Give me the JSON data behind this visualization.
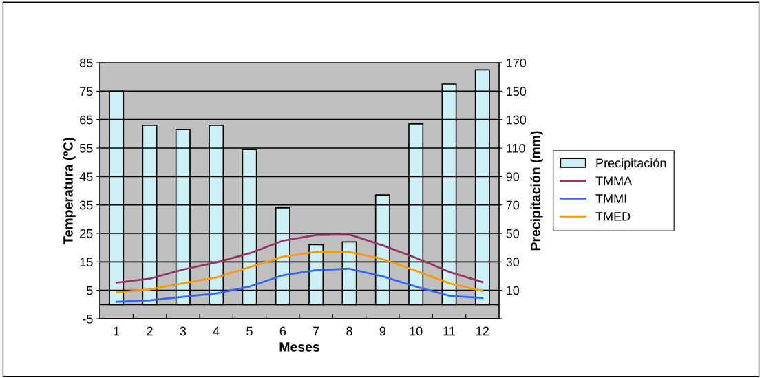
{
  "chart_data": {
    "type": "bar",
    "xlabel": "Meses",
    "ylabel": "Temperatura (ºC)",
    "y2label": "Precipitación (mm)",
    "categories": [
      "1",
      "2",
      "3",
      "4",
      "5",
      "6",
      "7",
      "8",
      "9",
      "10",
      "11",
      "12"
    ],
    "series": [
      {
        "name": "Precipitación",
        "axis": "y2",
        "color": "#ccf0f6",
        "values": [
          150,
          126,
          123,
          126,
          109,
          68,
          42,
          44,
          77,
          127,
          155,
          165
        ]
      },
      {
        "name": "TMMA",
        "type": "line",
        "color": "#993366",
        "values": [
          7.7,
          9.1,
          12.3,
          14.8,
          18,
          22.4,
          24.4,
          24.6,
          20.8,
          16.4,
          11.5,
          7.9
        ]
      },
      {
        "name": "TMMI",
        "type": "line",
        "color": "#3366ff",
        "values": [
          1,
          1.5,
          2.7,
          3.9,
          6.3,
          10.3,
          12.1,
          12.6,
          9.9,
          6.3,
          3.1,
          2.3
        ]
      },
      {
        "name": "TMED",
        "type": "line",
        "color": "#ff9900",
        "values": [
          4.3,
          5.3,
          7.5,
          9.5,
          13.1,
          16.8,
          18.5,
          18.5,
          16,
          11.9,
          7.5,
          4.8
        ]
      }
    ],
    "ylim": [
      -5,
      85
    ],
    "yticks": [
      -5,
      5,
      15,
      25,
      35,
      45,
      55,
      65,
      75,
      85
    ],
    "y2lim": [
      -10,
      170
    ],
    "y2ticks": [
      {
        "value": -10,
        "label": null
      },
      10,
      30,
      50,
      70,
      90,
      110,
      130,
      150,
      170
    ],
    "grid": "y",
    "legend": "right",
    "marker": "none",
    "line_style": "solid"
  }
}
